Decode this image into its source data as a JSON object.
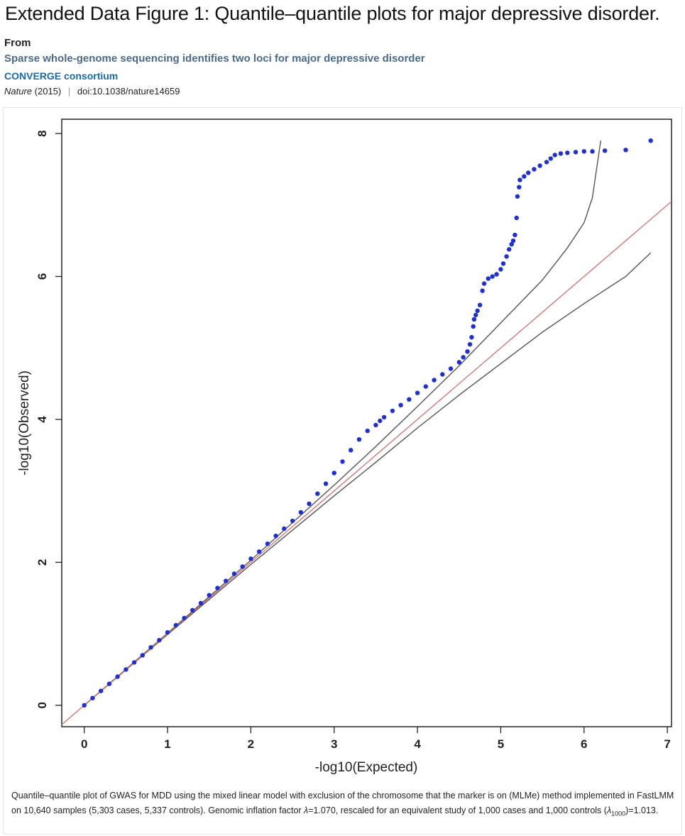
{
  "figure": {
    "title": "Extended Data Figure 1: Quantile–quantile plots for major depressive disorder."
  },
  "source": {
    "from_label": "From",
    "article_title": "Sparse whole-genome sequencing identifies two loci for major depressive disorder",
    "authors": "CONVERGE consortium",
    "journal": "Nature",
    "year": "(2015)",
    "separator": "|",
    "doi": "doi:10.1038/nature14659"
  },
  "caption": {
    "text_main": "Quantile–quantile plot of GWAS for MDD using the mixed linear model with exclusion of the chromosome that the marker is on (MLMe) method implemented in FastLMM on 10,640 samples (5,303 cases, 5,337 controls). Genomic inflation factor ",
    "lambda_symbol": "λ",
    "lambda_value": "=1.070, rescaled for an equivalent study of 1,000 cases and 1,000 controls (",
    "lambda_1000_symbol": "λ",
    "lambda_1000_sub": "1000",
    "lambda_1000_value": ")=1.013."
  },
  "colors": {
    "points": "#1f2fd0",
    "identity_line": "#d07070",
    "confidence_band": "#555555",
    "axes": "#222222"
  },
  "chart_data": {
    "type": "scatter",
    "xlabel": "-log10(Expected)",
    "ylabel": "-log10(Observed)",
    "xlim": [
      -0.27,
      7.05
    ],
    "ylim": [
      -0.3,
      8.2
    ],
    "xticks": [
      0,
      1,
      2,
      3,
      4,
      5,
      6,
      7
    ],
    "yticks": [
      0,
      2,
      4,
      6,
      8
    ],
    "grid": false,
    "legend": "none",
    "identity_line": {
      "slope": 1,
      "intercept": 0,
      "color": "#d07070"
    },
    "confidence_band": {
      "upper": [
        [
          0,
          0
        ],
        [
          1,
          1.01
        ],
        [
          2,
          2.03
        ],
        [
          3,
          3.08
        ],
        [
          3.5,
          3.62
        ],
        [
          4,
          4.18
        ],
        [
          4.5,
          4.75
        ],
        [
          5,
          5.35
        ],
        [
          5.5,
          5.95
        ],
        [
          5.8,
          6.4
        ],
        [
          6,
          6.75
        ],
        [
          6.1,
          7.1
        ],
        [
          6.2,
          7.9
        ]
      ],
      "lower": [
        [
          0,
          0
        ],
        [
          1,
          0.99
        ],
        [
          2,
          1.97
        ],
        [
          3,
          2.93
        ],
        [
          3.5,
          3.4
        ],
        [
          4,
          3.88
        ],
        [
          4.5,
          4.34
        ],
        [
          5,
          4.78
        ],
        [
          5.5,
          5.22
        ],
        [
          6,
          5.62
        ],
        [
          6.5,
          6.0
        ],
        [
          6.8,
          6.33
        ]
      ]
    },
    "series": [
      {
        "points": [
          [
            0,
            0
          ],
          [
            0.1,
            0.1
          ],
          [
            0.2,
            0.2
          ],
          [
            0.3,
            0.3
          ],
          [
            0.4,
            0.4
          ],
          [
            0.5,
            0.5
          ],
          [
            0.6,
            0.6
          ],
          [
            0.7,
            0.7
          ],
          [
            0.8,
            0.81
          ],
          [
            0.9,
            0.91
          ],
          [
            1,
            1.02
          ],
          [
            1.1,
            1.12
          ],
          [
            1.2,
            1.22
          ],
          [
            1.3,
            1.33
          ],
          [
            1.4,
            1.43
          ],
          [
            1.5,
            1.54
          ],
          [
            1.6,
            1.64
          ],
          [
            1.7,
            1.74
          ],
          [
            1.8,
            1.84
          ],
          [
            1.9,
            1.94
          ],
          [
            2,
            2.05
          ],
          [
            2.1,
            2.15
          ],
          [
            2.2,
            2.26
          ],
          [
            2.3,
            2.37
          ],
          [
            2.4,
            2.47
          ],
          [
            2.5,
            2.58
          ],
          [
            2.6,
            2.7
          ],
          [
            2.7,
            2.82
          ],
          [
            2.8,
            2.96
          ],
          [
            2.9,
            3.1
          ],
          [
            3,
            3.25
          ],
          [
            3.1,
            3.41
          ],
          [
            3.2,
            3.57
          ],
          [
            3.3,
            3.72
          ],
          [
            3.4,
            3.84
          ],
          [
            3.5,
            3.92
          ],
          [
            3.55,
            3.98
          ],
          [
            3.6,
            4.03
          ],
          [
            3.7,
            4.12
          ],
          [
            3.8,
            4.2
          ],
          [
            3.9,
            4.28
          ],
          [
            4,
            4.37
          ],
          [
            4.1,
            4.46
          ],
          [
            4.2,
            4.55
          ],
          [
            4.3,
            4.63
          ],
          [
            4.4,
            4.71
          ],
          [
            4.5,
            4.8
          ],
          [
            4.55,
            4.87
          ],
          [
            4.6,
            4.95
          ],
          [
            4.63,
            5.05
          ],
          [
            4.65,
            5.15
          ],
          [
            4.67,
            5.3
          ],
          [
            4.68,
            5.4
          ],
          [
            4.7,
            5.46
          ],
          [
            4.72,
            5.52
          ],
          [
            4.75,
            5.6
          ],
          [
            4.78,
            5.8
          ],
          [
            4.8,
            5.9
          ],
          [
            4.85,
            5.97
          ],
          [
            4.9,
            6.0
          ],
          [
            4.95,
            6.03
          ],
          [
            5.0,
            6.1
          ],
          [
            5.03,
            6.18
          ],
          [
            5.07,
            6.28
          ],
          [
            5.1,
            6.38
          ],
          [
            5.13,
            6.45
          ],
          [
            5.15,
            6.5
          ],
          [
            5.17,
            6.58
          ],
          [
            5.19,
            6.82
          ],
          [
            5.2,
            7.12
          ],
          [
            5.22,
            7.25
          ],
          [
            5.23,
            7.35
          ],
          [
            5.28,
            7.4
          ],
          [
            5.33,
            7.45
          ],
          [
            5.4,
            7.5
          ],
          [
            5.47,
            7.55
          ],
          [
            5.55,
            7.6
          ],
          [
            5.6,
            7.65
          ],
          [
            5.65,
            7.7
          ],
          [
            5.72,
            7.72
          ],
          [
            5.8,
            7.73
          ],
          [
            5.9,
            7.74
          ],
          [
            6.0,
            7.75
          ],
          [
            6.1,
            7.75
          ],
          [
            6.25,
            7.76
          ],
          [
            6.5,
            7.77
          ],
          [
            6.8,
            7.9
          ]
        ]
      }
    ]
  }
}
